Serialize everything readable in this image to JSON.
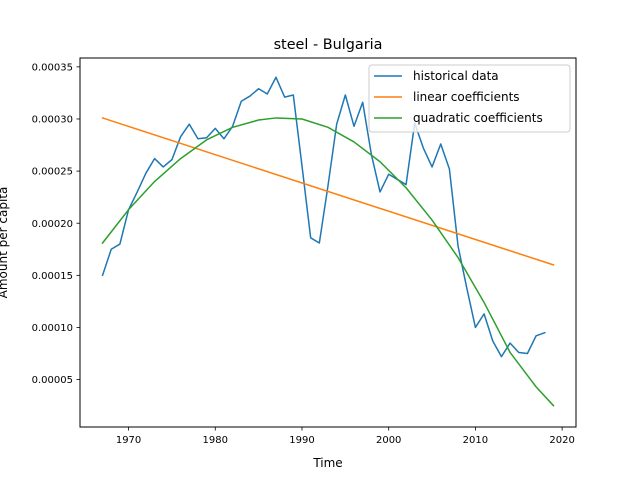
{
  "chart_data": {
    "type": "line",
    "title": "steel - Bulgaria",
    "xlabel": "Time",
    "ylabel": "Amount per capita",
    "xlim": [
      1964.4,
      2021.6
    ],
    "ylim": [
      4.5e-06,
      0.0003585
    ],
    "xticks": [
      1970,
      1980,
      1990,
      2000,
      2010,
      2020
    ],
    "xtick_labels": [
      "1970",
      "1980",
      "1990",
      "2000",
      "2010",
      "2020"
    ],
    "yticks": [
      5e-05,
      0.0001,
      0.00015,
      0.0002,
      0.00025,
      0.0003,
      0.00035
    ],
    "ytick_labels": [
      "0.00005",
      "0.00010",
      "0.00015",
      "0.00020",
      "0.00025",
      "0.00030",
      "0.00035"
    ],
    "legend_position": "top-right",
    "series": [
      {
        "name": "historical data",
        "color": "#1f77b4",
        "x": [
          1967,
          1968,
          1969,
          1970,
          1971,
          1972,
          1973,
          1974,
          1975,
          1976,
          1977,
          1978,
          1979,
          1980,
          1981,
          1982,
          1983,
          1984,
          1985,
          1986,
          1987,
          1988,
          1989,
          1990,
          1991,
          1992,
          1993,
          1994,
          1995,
          1996,
          1997,
          1998,
          1999,
          2000,
          2001,
          2002,
          2003,
          2004,
          2005,
          2006,
          2007,
          2008,
          2009,
          2010,
          2011,
          2012,
          2013,
          2014,
          2015,
          2016,
          2017,
          2018
        ],
        "y": [
          0.00015,
          0.000175,
          0.00018,
          0.000213,
          0.00023,
          0.000248,
          0.000262,
          0.000254,
          0.000261,
          0.000283,
          0.000295,
          0.000281,
          0.000282,
          0.000291,
          0.000281,
          0.000293,
          0.000317,
          0.000322,
          0.000329,
          0.000324,
          0.00034,
          0.000321,
          0.000323,
          0.000255,
          0.000186,
          0.000181,
          0.000236,
          0.000295,
          0.000323,
          0.000293,
          0.000316,
          0.000266,
          0.00023,
          0.000247,
          0.000242,
          0.000237,
          0.000296,
          0.000272,
          0.000254,
          0.000276,
          0.000252,
          0.000178,
          0.000138,
          0.0001,
          0.000113,
          8.7e-05,
          7.2e-05,
          8.5e-05,
          7.6e-05,
          7.5e-05,
          9.2e-05,
          9.5e-05
        ]
      },
      {
        "name": "linear coefficients",
        "color": "#ff7f0e",
        "x": [
          1967,
          2019
        ],
        "y": [
          0.000301,
          0.00016
        ]
      },
      {
        "name": "quadratic coefficients",
        "color": "#2ca02c",
        "x": [
          1967,
          1970,
          1973,
          1976,
          1979,
          1982,
          1985,
          1987,
          1990,
          1993,
          1996,
          1999,
          2002,
          2005,
          2008,
          2011,
          2014,
          2017,
          2019
        ],
        "y": [
          0.000181,
          0.000213,
          0.00024,
          0.000262,
          0.00028,
          0.000292,
          0.000299,
          0.000301,
          0.0003,
          0.000292,
          0.000278,
          0.000259,
          0.000234,
          0.000203,
          0.000167,
          0.000124,
          7.6e-05,
          4.3e-05,
          2.5e-05
        ]
      }
    ]
  }
}
